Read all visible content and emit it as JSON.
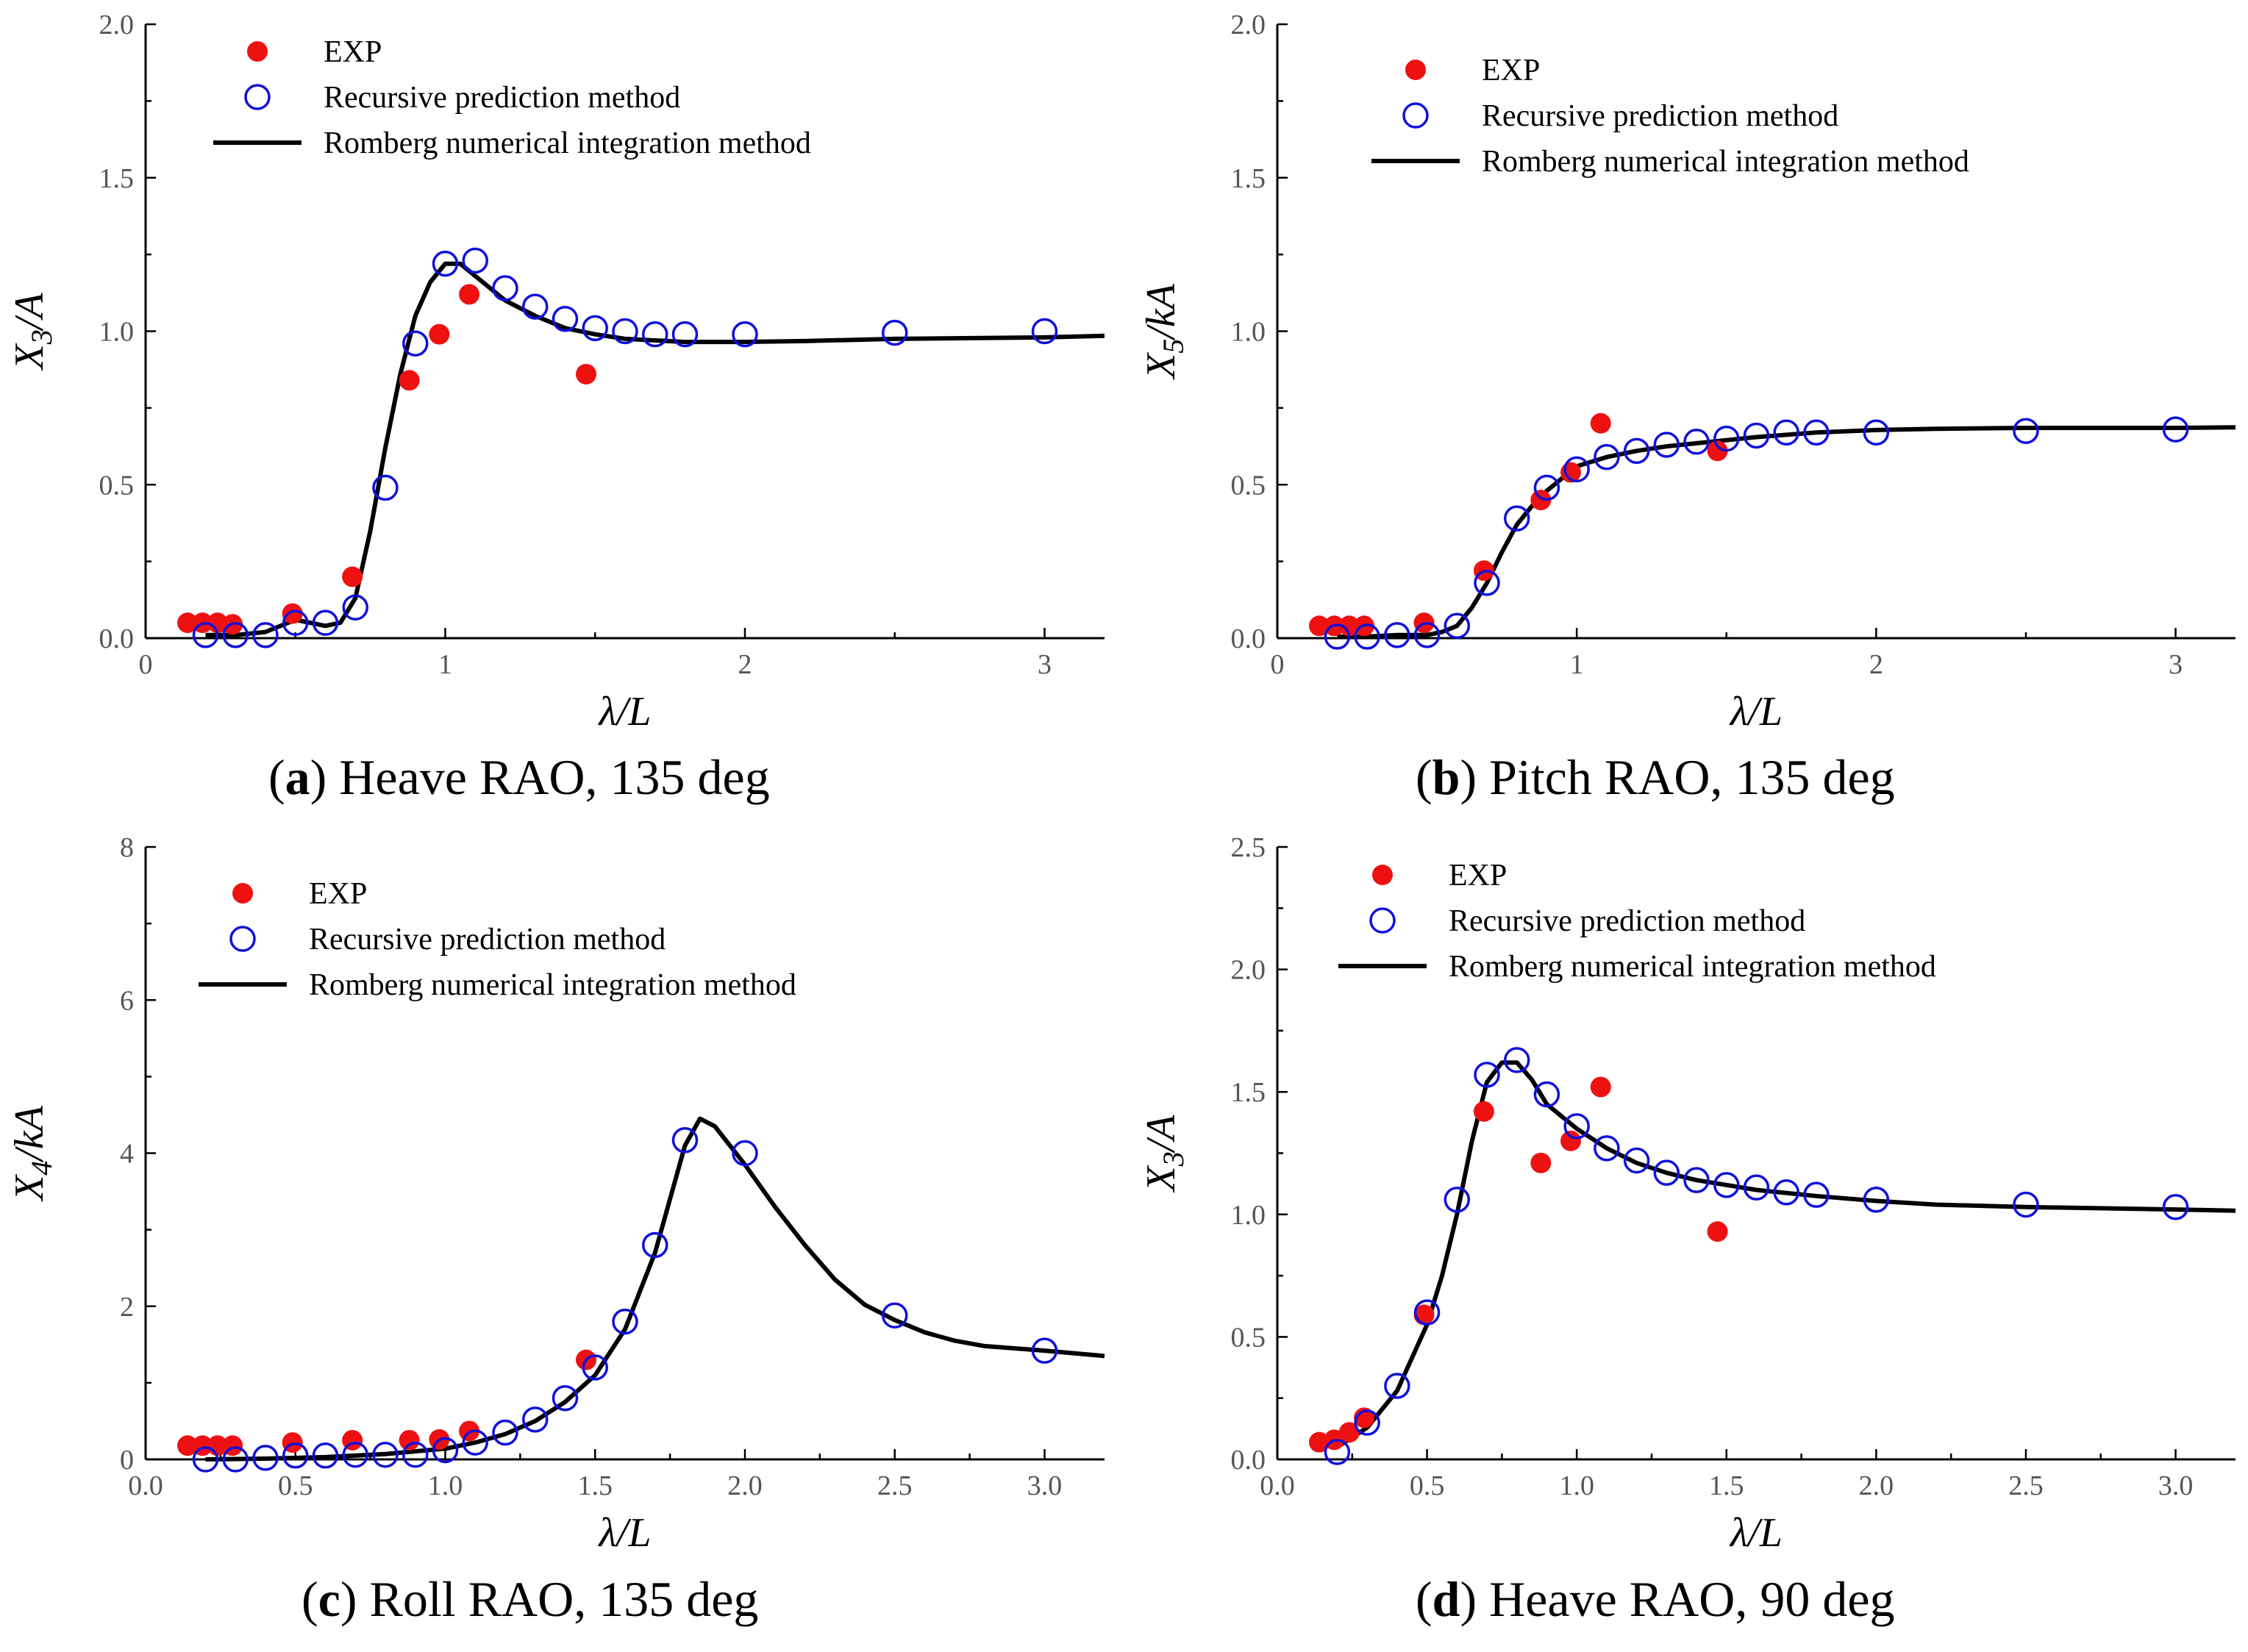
{
  "chart_data": [
    {
      "id": "a",
      "type": "scatter",
      "caption_letter": "a",
      "caption_text": " Heave RAO, 135 deg",
      "xlabel": "λ/L",
      "ylabel": "X3/A",
      "ylabel_main": "X",
      "ylabel_sub": "3",
      "ylabel_rest": "/A",
      "xlim": [
        0,
        3.2
      ],
      "ylim": [
        0,
        2.0
      ],
      "x_ticks": [
        0,
        1,
        2,
        3
      ],
      "x_tick_labels": [
        "0",
        "1",
        "2",
        "3"
      ],
      "y_ticks": [
        0,
        0.5,
        1.0,
        1.5,
        2.0
      ],
      "y_tick_labels": [
        "0.0",
        "0.5",
        "1.0",
        "1.5",
        "2.0"
      ],
      "legend": [
        "EXP",
        "Recursive prediction method",
        "Romberg numerical integration method"
      ],
      "series": [
        {
          "name": "EXP",
          "kind": "filled-circle",
          "color": "#ee1111",
          "x": [
            0.14,
            0.19,
            0.24,
            0.29,
            0.49,
            0.69,
            0.88,
            0.98,
            1.08,
            1.47
          ],
          "y": [
            0.05,
            0.05,
            0.05,
            0.045,
            0.08,
            0.2,
            0.84,
            0.99,
            1.12,
            0.86
          ]
        },
        {
          "name": "Recursive prediction method",
          "kind": "open-circle",
          "color": "#1010dd",
          "x": [
            0.2,
            0.3,
            0.4,
            0.5,
            0.6,
            0.7,
            0.8,
            0.9,
            1.0,
            1.1,
            1.2,
            1.3,
            1.4,
            1.5,
            1.6,
            1.7,
            1.8,
            2.0,
            2.5,
            3.0
          ],
          "y": [
            0.01,
            0.01,
            0.01,
            0.05,
            0.05,
            0.1,
            0.49,
            0.96,
            1.22,
            1.23,
            1.14,
            1.08,
            1.04,
            1.01,
            1.0,
            0.99,
            0.99,
            0.99,
            0.995,
            1.0
          ]
        },
        {
          "name": "Romberg numerical integration method",
          "kind": "line",
          "color": "#000000",
          "x": [
            0.2,
            0.3,
            0.4,
            0.5,
            0.6,
            0.65,
            0.7,
            0.75,
            0.8,
            0.85,
            0.9,
            0.95,
            1.0,
            1.05,
            1.1,
            1.2,
            1.3,
            1.4,
            1.5,
            1.6,
            1.7,
            1.8,
            2.0,
            2.2,
            2.5,
            3.0,
            3.2
          ],
          "y": [
            0.01,
            0.01,
            0.02,
            0.06,
            0.04,
            0.05,
            0.13,
            0.35,
            0.62,
            0.86,
            1.05,
            1.16,
            1.22,
            1.22,
            1.18,
            1.1,
            1.05,
            1.01,
            0.99,
            0.975,
            0.97,
            0.965,
            0.965,
            0.968,
            0.975,
            0.98,
            0.985
          ]
        }
      ]
    },
    {
      "id": "b",
      "type": "scatter",
      "caption_letter": "b",
      "caption_text": " Pitch RAO, 135 deg",
      "xlabel": "λ/L",
      "ylabel": "X5/kA",
      "ylabel_main": "X",
      "ylabel_sub": "5",
      "ylabel_rest": "/kA",
      "xlim": [
        0,
        3.2
      ],
      "ylim": [
        0,
        2.0
      ],
      "x_ticks": [
        0,
        1,
        2,
        3
      ],
      "x_tick_labels": [
        "0",
        "1",
        "2",
        "3"
      ],
      "y_ticks": [
        0,
        0.5,
        1.0,
        1.5,
        2.0
      ],
      "y_tick_labels": [
        "0.0",
        "0.5",
        "1.0",
        "1.5",
        "2.0"
      ],
      "legend": [
        "EXP",
        "Recursive prediction method",
        "Romberg numerical integration method"
      ],
      "series": [
        {
          "name": "EXP",
          "kind": "filled-circle",
          "color": "#ee1111",
          "x": [
            0.14,
            0.19,
            0.24,
            0.29,
            0.49,
            0.69,
            0.88,
            0.98,
            1.08,
            1.47
          ],
          "y": [
            0.04,
            0.04,
            0.04,
            0.04,
            0.05,
            0.22,
            0.45,
            0.54,
            0.7,
            0.61
          ]
        },
        {
          "name": "Recursive prediction method",
          "kind": "open-circle",
          "color": "#1010dd",
          "x": [
            0.2,
            0.3,
            0.4,
            0.5,
            0.6,
            0.7,
            0.8,
            0.9,
            1.0,
            1.1,
            1.2,
            1.3,
            1.4,
            1.5,
            1.6,
            1.7,
            1.8,
            2.0,
            2.5,
            3.0
          ],
          "y": [
            0.005,
            0.005,
            0.01,
            0.01,
            0.04,
            0.18,
            0.39,
            0.49,
            0.55,
            0.59,
            0.61,
            0.63,
            0.64,
            0.65,
            0.66,
            0.67,
            0.67,
            0.67,
            0.675,
            0.68
          ]
        },
        {
          "name": "Romberg numerical integration method",
          "kind": "line",
          "color": "#000000",
          "x": [
            0.2,
            0.3,
            0.4,
            0.5,
            0.55,
            0.6,
            0.65,
            0.7,
            0.75,
            0.8,
            0.85,
            0.9,
            1.0,
            1.1,
            1.2,
            1.3,
            1.4,
            1.5,
            1.6,
            1.8,
            2.0,
            2.2,
            2.5,
            3.0,
            3.2
          ],
          "y": [
            0.005,
            0.005,
            0.01,
            0.01,
            0.02,
            0.04,
            0.1,
            0.18,
            0.28,
            0.37,
            0.43,
            0.48,
            0.56,
            0.59,
            0.61,
            0.625,
            0.635,
            0.645,
            0.655,
            0.67,
            0.678,
            0.682,
            0.685,
            0.685,
            0.687
          ]
        }
      ]
    },
    {
      "id": "c",
      "type": "scatter",
      "caption_letter": "c",
      "caption_text": " Roll RAO, 135 deg",
      "xlabel": "λ/L",
      "ylabel": "X4/kA",
      "ylabel_main": "X",
      "ylabel_sub": "4",
      "ylabel_rest": "/kA",
      "xlim": [
        0,
        3.2
      ],
      "ylim": [
        0,
        8
      ],
      "x_ticks": [
        0,
        0.5,
        1.0,
        1.5,
        2.0,
        2.5,
        3.0
      ],
      "x_tick_labels": [
        "0.0",
        "0.5",
        "1.0",
        "1.5",
        "2.0",
        "2.5",
        "3.0"
      ],
      "y_ticks": [
        0,
        2,
        4,
        6,
        8
      ],
      "y_tick_labels": [
        "0",
        "2",
        "4",
        "6",
        "8"
      ],
      "legend": [
        "EXP",
        "Recursive prediction method",
        "Romberg numerical integration method"
      ],
      "series": [
        {
          "name": "EXP",
          "kind": "filled-circle",
          "color": "#ee1111",
          "x": [
            0.14,
            0.19,
            0.24,
            0.29,
            0.49,
            0.69,
            0.88,
            0.98,
            1.08,
            1.47
          ],
          "y": [
            0.18,
            0.18,
            0.18,
            0.18,
            0.22,
            0.25,
            0.25,
            0.26,
            0.37,
            1.3
          ]
        },
        {
          "name": "Recursive prediction method",
          "kind": "open-circle",
          "color": "#1010dd",
          "x": [
            0.2,
            0.3,
            0.4,
            0.5,
            0.6,
            0.7,
            0.8,
            0.9,
            1.0,
            1.1,
            1.2,
            1.3,
            1.4,
            1.5,
            1.6,
            1.7,
            1.8,
            2.0,
            2.5,
            3.0
          ],
          "y": [
            0.0,
            0.0,
            0.02,
            0.05,
            0.05,
            0.06,
            0.06,
            0.06,
            0.12,
            0.22,
            0.35,
            0.52,
            0.8,
            1.2,
            1.8,
            2.8,
            4.17,
            4.0,
            1.88,
            1.42
          ]
        },
        {
          "name": "Romberg numerical integration method",
          "kind": "line",
          "color": "#000000",
          "x": [
            0.2,
            0.4,
            0.6,
            0.8,
            1.0,
            1.1,
            1.2,
            1.3,
            1.4,
            1.5,
            1.6,
            1.7,
            1.75,
            1.8,
            1.85,
            1.9,
            2.0,
            2.1,
            2.2,
            2.3,
            2.4,
            2.5,
            2.6,
            2.7,
            2.8,
            3.0,
            3.2
          ],
          "y": [
            0.0,
            0.01,
            0.03,
            0.07,
            0.14,
            0.22,
            0.33,
            0.5,
            0.75,
            1.1,
            1.7,
            2.7,
            3.4,
            4.1,
            4.45,
            4.35,
            3.85,
            3.3,
            2.8,
            2.35,
            2.02,
            1.82,
            1.66,
            1.55,
            1.48,
            1.42,
            1.35
          ]
        }
      ]
    },
    {
      "id": "d",
      "type": "scatter",
      "caption_letter": "d",
      "caption_text": " Heave RAO, 90 deg",
      "xlabel": "λ/L",
      "ylabel": "X3/A",
      "ylabel_main": "X",
      "ylabel_sub": "3",
      "ylabel_rest": "/A",
      "xlim": [
        0,
        3.2
      ],
      "ylim": [
        0,
        2.5
      ],
      "x_ticks": [
        0,
        0.5,
        1.0,
        1.5,
        2.0,
        2.5,
        3.0
      ],
      "x_tick_labels": [
        "0.0",
        "0.5",
        "1.0",
        "1.5",
        "2.0",
        "2.5",
        "3.0"
      ],
      "y_ticks": [
        0,
        0.5,
        1.0,
        1.5,
        2.0,
        2.5
      ],
      "y_tick_labels": [
        "0.0",
        "0.5",
        "1.0",
        "1.5",
        "2.0",
        "2.5"
      ],
      "legend": [
        "EXP",
        "Recursive prediction method",
        "Romberg numerical integration method"
      ],
      "series": [
        {
          "name": "EXP",
          "kind": "filled-circle",
          "color": "#ee1111",
          "x": [
            0.14,
            0.19,
            0.24,
            0.29,
            0.49,
            0.69,
            0.88,
            0.98,
            1.08,
            1.47
          ],
          "y": [
            0.07,
            0.08,
            0.11,
            0.17,
            0.59,
            1.42,
            1.21,
            1.3,
            1.52,
            0.93
          ]
        },
        {
          "name": "Recursive prediction method",
          "kind": "open-circle",
          "color": "#1010dd",
          "x": [
            0.2,
            0.3,
            0.4,
            0.5,
            0.6,
            0.7,
            0.8,
            0.9,
            1.0,
            1.1,
            1.2,
            1.3,
            1.4,
            1.5,
            1.6,
            1.7,
            1.8,
            2.0,
            2.5,
            3.0
          ],
          "y": [
            0.03,
            0.15,
            0.3,
            0.6,
            1.06,
            1.57,
            1.63,
            1.49,
            1.36,
            1.27,
            1.22,
            1.17,
            1.14,
            1.12,
            1.11,
            1.09,
            1.08,
            1.06,
            1.04,
            1.03
          ]
        },
        {
          "name": "Romberg numerical integration method",
          "kind": "line",
          "color": "#000000",
          "x": [
            0.2,
            0.3,
            0.4,
            0.5,
            0.55,
            0.6,
            0.65,
            0.7,
            0.75,
            0.8,
            0.85,
            0.9,
            1.0,
            1.1,
            1.2,
            1.3,
            1.4,
            1.5,
            1.6,
            1.8,
            2.0,
            2.2,
            2.5,
            3.0,
            3.2
          ],
          "y": [
            0.05,
            0.13,
            0.28,
            0.55,
            0.75,
            1.0,
            1.3,
            1.54,
            1.62,
            1.62,
            1.55,
            1.45,
            1.35,
            1.27,
            1.21,
            1.17,
            1.14,
            1.12,
            1.1,
            1.075,
            1.055,
            1.04,
            1.03,
            1.02,
            1.015
          ]
        }
      ]
    }
  ]
}
